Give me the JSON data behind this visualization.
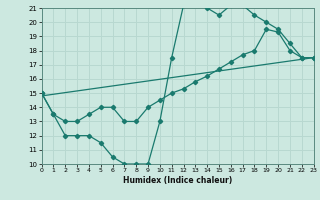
{
  "xlabel": "Humidex (Indice chaleur)",
  "xlim": [
    0,
    23
  ],
  "ylim": [
    10,
    21
  ],
  "xticks": [
    0,
    1,
    2,
    3,
    4,
    5,
    6,
    7,
    8,
    9,
    10,
    11,
    12,
    13,
    14,
    15,
    16,
    17,
    18,
    19,
    20,
    21,
    22,
    23
  ],
  "yticks": [
    10,
    11,
    12,
    13,
    14,
    15,
    16,
    17,
    18,
    19,
    20,
    21
  ],
  "bg_color": "#cce8e0",
  "line_color": "#1a7a6e",
  "grid_color": "#b8d8d0",
  "curve1_x": [
    0,
    1,
    2,
    3,
    4,
    5,
    6,
    7,
    8,
    9,
    10,
    11,
    12,
    13,
    14,
    15,
    16,
    17,
    18,
    19,
    20,
    21,
    22,
    23
  ],
  "curve1_y": [
    15,
    13.5,
    12,
    12,
    12,
    11.5,
    10.5,
    10,
    10,
    10,
    13,
    17.5,
    21.2,
    21.3,
    21,
    20.5,
    21.2,
    21.2,
    20.5,
    20,
    19.5,
    18.5,
    17.5,
    17.5
  ],
  "curve2_x": [
    0,
    1,
    2,
    3,
    4,
    5,
    6,
    7,
    8,
    9,
    10,
    11,
    12,
    13,
    14,
    15,
    16,
    17,
    18,
    19,
    20,
    21,
    22,
    23
  ],
  "curve2_y": [
    15,
    13.5,
    13,
    13,
    13.5,
    14,
    14,
    13,
    13,
    14,
    14.5,
    15,
    15.3,
    15.8,
    16.2,
    16.7,
    17.2,
    17.7,
    18,
    19.5,
    19.3,
    18,
    17.5,
    17.5
  ],
  "curve3_x": [
    0,
    23
  ],
  "curve3_y": [
    14.8,
    17.5
  ]
}
